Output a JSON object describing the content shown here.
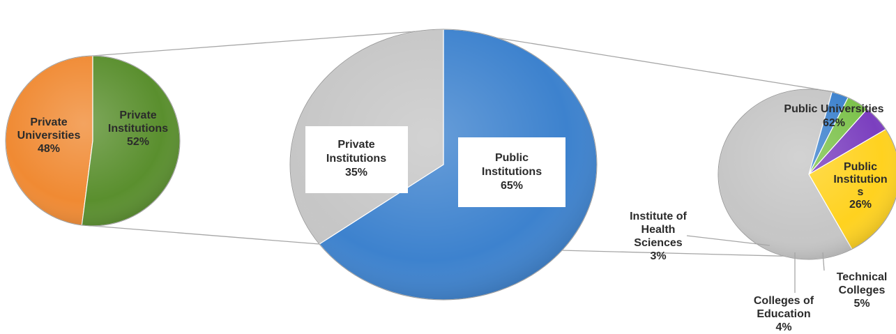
{
  "chart_data": [
    {
      "type": "pie",
      "labels": [
        "Private Universities",
        "Private Institutions"
      ],
      "values": [
        48,
        52
      ],
      "pct_labels": [
        "48%",
        "52%"
      ],
      "colors": [
        "#f08a33",
        "#5a8f2e"
      ]
    },
    {
      "type": "pie",
      "labels": [
        "Public Institutions",
        "Private Institutions"
      ],
      "values": [
        65,
        35
      ],
      "pct_labels": [
        "65%",
        "35%"
      ],
      "colors": [
        "#3d82ce",
        "#c6c6c6"
      ]
    },
    {
      "type": "pie",
      "labels": [
        "Public Institutions",
        "Public Universities",
        "Institute of Health Sciences",
        "Colleges of Education",
        "Technical Colleges"
      ],
      "label_text": [
        "Public Institution s",
        "Public Universities",
        "Institute of Health Sciences",
        "Colleges of Education",
        "Technical Colleges"
      ],
      "values": [
        26,
        62,
        3,
        4,
        5
      ],
      "pct_labels": [
        "26%",
        "62%",
        "3%",
        "4%",
        "5%"
      ],
      "colors": [
        "#ffd21f",
        "#c6c6c6",
        "#3d82ce",
        "#7cc24b",
        "#7b3fbf"
      ]
    }
  ]
}
